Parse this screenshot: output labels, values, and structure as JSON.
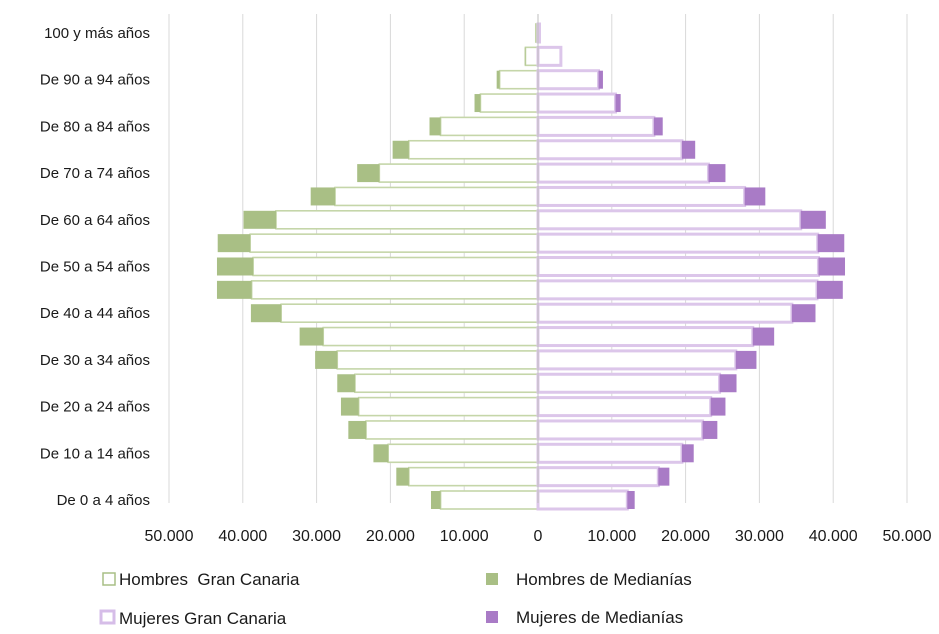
{
  "chart_data": {
    "type": "bar",
    "orientation": "horizontal-population-pyramid",
    "categories": [
      "De 0 a 4 años",
      "",
      "De 10 a 14 años",
      "",
      "De 20 a 24 años",
      "",
      "De 30 a 34 años",
      "",
      "De 40 a 44 años",
      "",
      "De 50 a 54 años",
      "",
      "De 60 a 64 años",
      "",
      "De 70 a 74 años",
      "",
      "De 80 a 84 años",
      "",
      "De 90 a 94 años",
      "",
      "100 y más años"
    ],
    "series": [
      {
        "name": "Hombres  Gran Canaria",
        "side": "left",
        "style": "outline",
        "color": "#c5d6a9",
        "values": [
          13200,
          17500,
          20300,
          23300,
          24300,
          24800,
          27200,
          29100,
          34800,
          38800,
          38600,
          39000,
          35500,
          27500,
          21500,
          17500,
          13200,
          7800,
          5200,
          1700,
          300
        ]
      },
      {
        "name": "Hombres de Medianías",
        "side": "left",
        "style": "filled",
        "color": "#a9bf85",
        "values": [
          1300,
          1700,
          2000,
          2400,
          2400,
          2400,
          3000,
          3200,
          4100,
          4700,
          4900,
          4400,
          4400,
          3300,
          3000,
          2200,
          1500,
          800,
          400,
          100,
          0
        ]
      },
      {
        "name": "Mujeres Gran Canaria",
        "side": "right",
        "style": "outline",
        "color": "#dcc6ea",
        "values": [
          12100,
          16300,
          19500,
          22300,
          23400,
          24600,
          26800,
          29100,
          34400,
          37800,
          38000,
          37900,
          35600,
          28000,
          23100,
          19500,
          15700,
          10500,
          8200,
          3100,
          200
        ]
      },
      {
        "name": "Mujeres de Medianías",
        "side": "right",
        "style": "filled",
        "color": "#a97bc6",
        "values": [
          1000,
          1500,
          1600,
          2000,
          2000,
          2300,
          2800,
          2900,
          3200,
          3500,
          3600,
          3600,
          3400,
          2800,
          2300,
          1800,
          1200,
          700,
          600,
          0,
          0
        ]
      }
    ],
    "x_ticks": [
      "50.000",
      "40.000",
      "30.000",
      "20.000",
      "10.000",
      "0",
      "10.000",
      "20.000",
      "30.000",
      "40.000",
      "50.000"
    ],
    "xlim": [
      -50000,
      50000
    ],
    "grid": true,
    "legend_placement": "bottom",
    "title": "",
    "xlabel": "",
    "ylabel": ""
  },
  "legend": {
    "hombres_gc": "Hombres  Gran Canaria",
    "hombres_med": "Hombres de Medianías",
    "mujeres_gc": "Mujeres Gran Canaria",
    "mujeres_med": "Mujeres de Medianías"
  }
}
